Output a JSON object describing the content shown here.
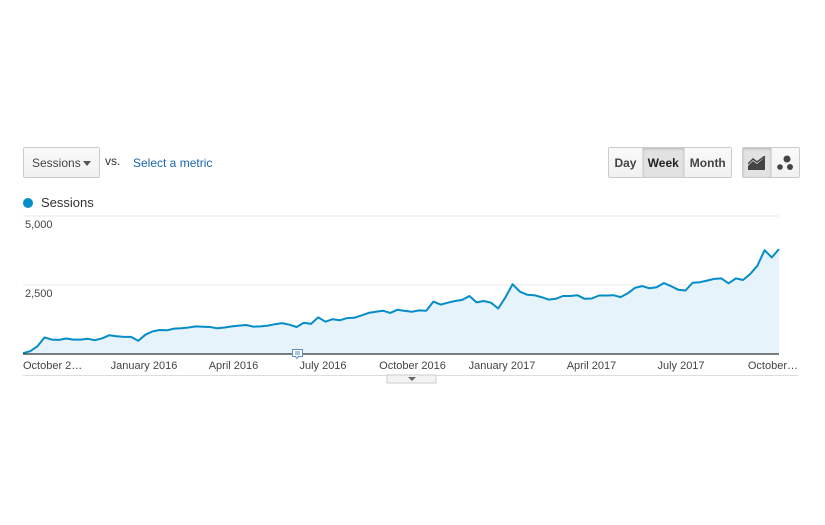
{
  "controls": {
    "metric_select": "Sessions",
    "vs_label": "vs.",
    "select_metric_link": "Select a metric",
    "period_buttons": [
      {
        "label": "Day",
        "active": false
      },
      {
        "label": "Week",
        "active": true
      },
      {
        "label": "Month",
        "active": false
      }
    ],
    "view_buttons": [
      {
        "icon": "line-chart-icon",
        "active": true
      },
      {
        "icon": "motion-chart-icon",
        "active": false
      }
    ]
  },
  "colors": {
    "series": "#058dc7",
    "fill": "#e6f3fa"
  },
  "chart_data": {
    "type": "area",
    "granularity": "week",
    "legend": "top-left",
    "grid": true,
    "series": [
      {
        "name": "Sessions",
        "values": [
          30,
          100,
          280,
          600,
          520,
          510,
          560,
          520,
          520,
          550,
          500,
          570,
          680,
          640,
          620,
          620,
          480,
          700,
          820,
          870,
          860,
          920,
          930,
          960,
          1000,
          990,
          980,
          930,
          960,
          1000,
          1030,
          1050,
          990,
          1000,
          1030,
          1080,
          1120,
          1060,
          980,
          1130,
          1090,
          1330,
          1170,
          1260,
          1220,
          1300,
          1310,
          1400,
          1490,
          1530,
          1570,
          1490,
          1600,
          1560,
          1530,
          1580,
          1570,
          1900,
          1790,
          1860,
          1920,
          1960,
          2100,
          1870,
          1920,
          1860,
          1650,
          2050,
          2530,
          2260,
          2150,
          2130,
          2060,
          1970,
          2000,
          2100,
          2100,
          2130,
          2000,
          2010,
          2120,
          2120,
          2130,
          2060,
          2200,
          2400,
          2460,
          2380,
          2420,
          2570,
          2460,
          2330,
          2300,
          2580,
          2600,
          2660,
          2720,
          2740,
          2560,
          2740,
          2680,
          2900,
          3200,
          3760,
          3500,
          3800
        ]
      }
    ],
    "ylim": [
      0,
      5000
    ],
    "yticks": [
      "2,500",
      "5,000"
    ],
    "ytick_values": [
      2500,
      5000
    ],
    "xticks": [
      "October 2…",
      "January 2016",
      "April 2016",
      "July 2016",
      "October 2016",
      "January 2017",
      "April 2017",
      "July 2017",
      "October…"
    ],
    "annotations": [
      {
        "icon": "annotation-icon",
        "near": "July 2016"
      }
    ]
  }
}
